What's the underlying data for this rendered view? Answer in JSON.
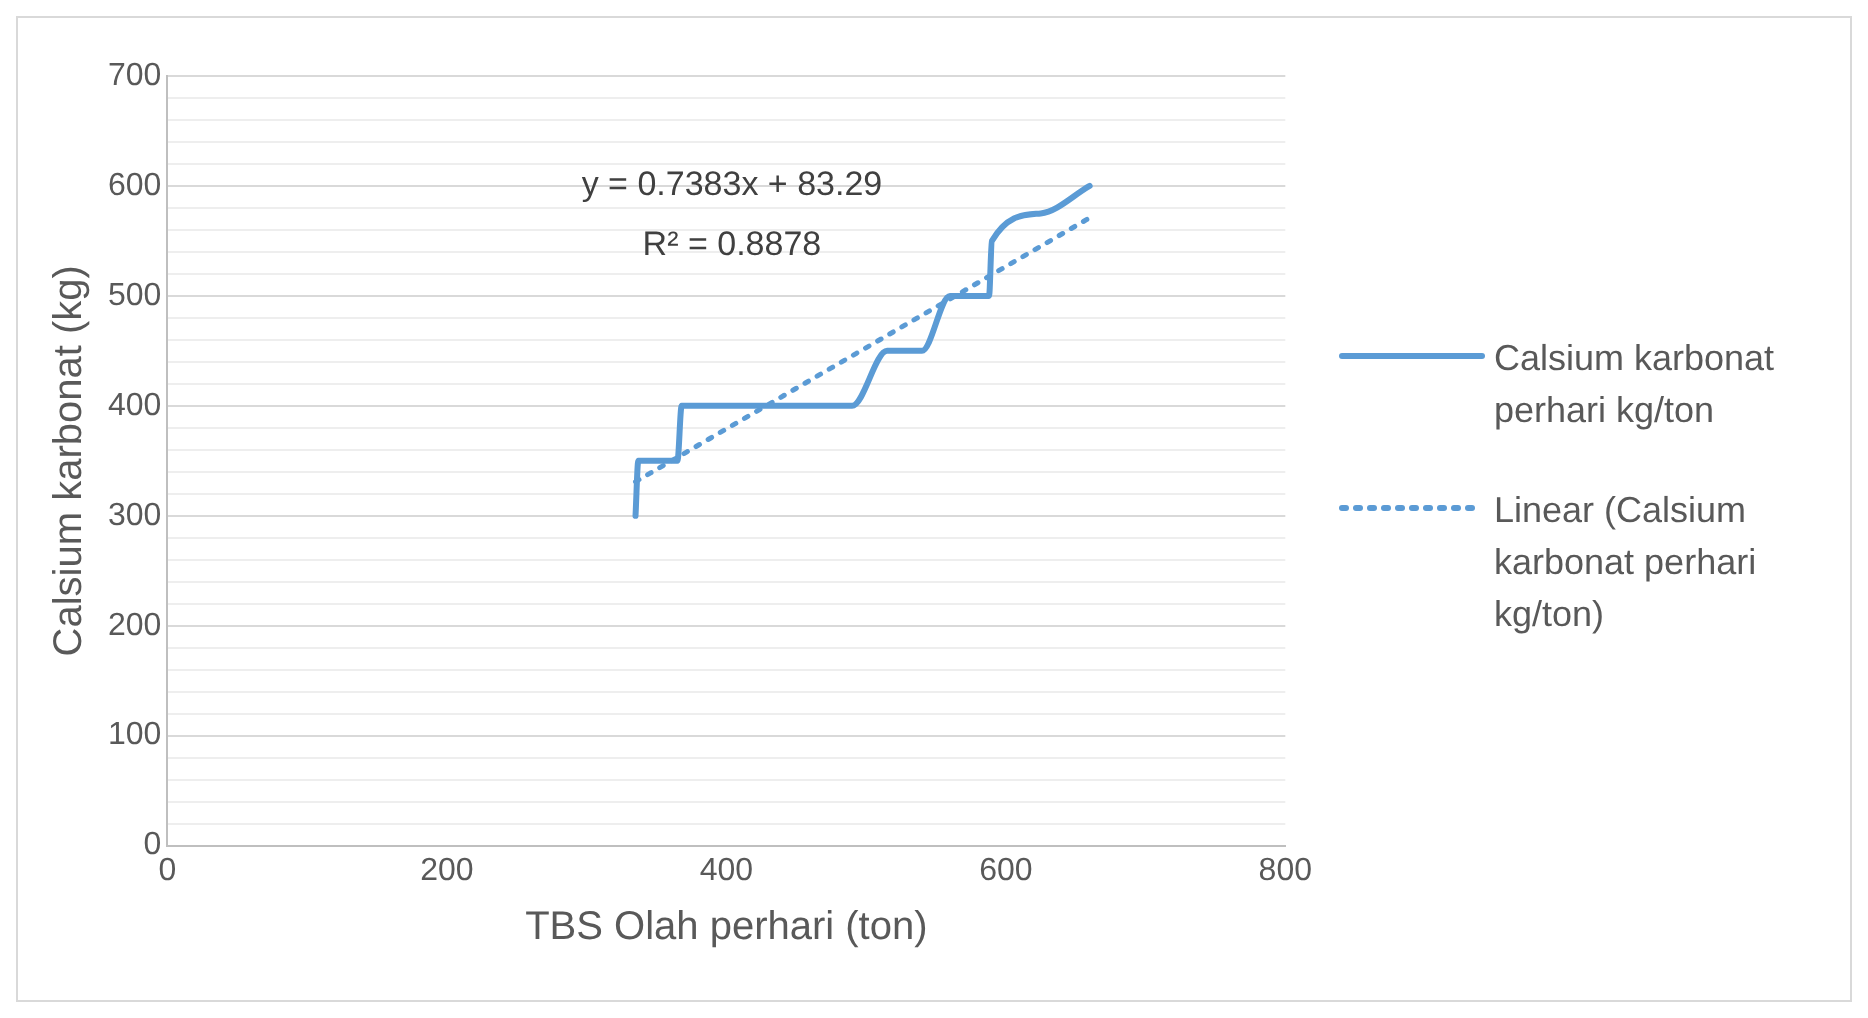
{
  "chart_data": {
    "type": "line",
    "xlabel": "TBS Olah perhari (ton)",
    "ylabel": "Calsium karbonat (kg)",
    "xlim": [
      0,
      800
    ],
    "xticks": [
      0,
      200,
      400,
      600,
      800
    ],
    "ylim": [
      0,
      700
    ],
    "yticks": [
      0,
      {
        "value": 20,
        "label": null
      },
      {
        "value": 40,
        "label": null
      },
      {
        "value": 60,
        "label": null
      },
      {
        "value": 80,
        "label": null
      },
      100,
      {
        "value": 120,
        "label": null
      },
      {
        "value": 140,
        "label": null
      },
      {
        "value": 160,
        "label": null
      },
      {
        "value": 180,
        "label": null
      },
      200,
      {
        "value": 220,
        "label": null
      },
      {
        "value": 240,
        "label": null
      },
      {
        "value": 260,
        "label": null
      },
      {
        "value": 280,
        "label": null
      },
      300,
      {
        "value": 320,
        "label": null
      },
      {
        "value": 340,
        "label": null
      },
      {
        "value": 360,
        "label": null
      },
      {
        "value": 380,
        "label": null
      },
      400,
      {
        "value": 420,
        "label": null
      },
      {
        "value": 440,
        "label": null
      },
      {
        "value": 460,
        "label": null
      },
      {
        "value": 480,
        "label": null
      },
      500,
      {
        "value": 520,
        "label": null
      },
      {
        "value": 540,
        "label": null
      },
      {
        "value": 560,
        "label": null
      },
      {
        "value": 580,
        "label": null
      },
      600,
      {
        "value": 620,
        "label": null
      },
      {
        "value": 640,
        "label": null
      },
      {
        "value": 660,
        "label": null
      },
      {
        "value": 680,
        "label": null
      },
      700
    ],
    "grid": "y",
    "legend": "right",
    "marker": "none",
    "series": [
      {
        "name": "Calsium karbonat perhari kg/ton",
        "color": "#5b9bd5",
        "line_style": "solid",
        "x": [
          335,
          337,
          365,
          368,
          470,
          490,
          515,
          540,
          560,
          588,
          590,
          625,
          660
        ],
        "values": [
          300,
          350,
          350,
          400,
          400,
          400,
          450,
          450,
          500,
          500,
          550,
          575,
          600
        ]
      },
      {
        "name": "Linear (Calsium karbonat perhari kg/ton)",
        "type": "line",
        "color": "#5b9bd5",
        "line_style": "dotted",
        "x": [
          335,
          660
        ],
        "values": [
          331,
          571
        ]
      }
    ],
    "annotations": [
      "y = 0.7383x + 83.29",
      "R² = 0.8878"
    ]
  }
}
